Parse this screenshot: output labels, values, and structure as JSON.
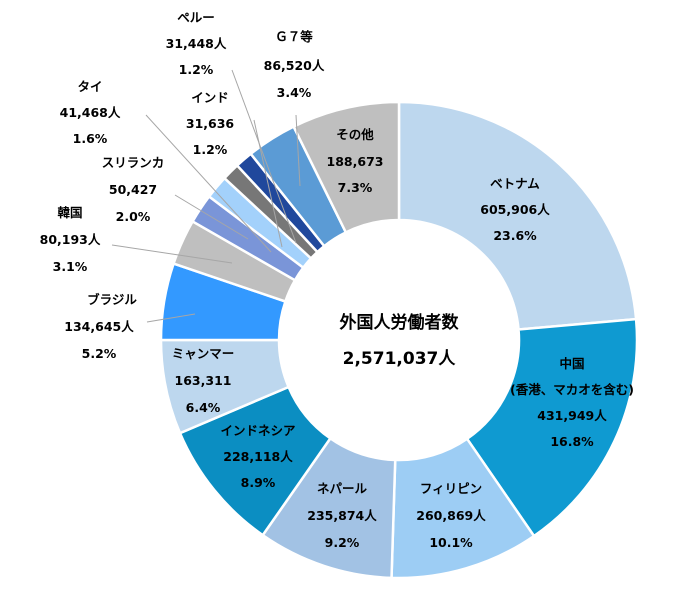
{
  "chart_data": {
    "type": "pie",
    "donut": true,
    "center_title": "外国人労働者数",
    "center_value": "2,571,037人",
    "slices": [
      {
        "name": "ベトナム",
        "count": "605,906人",
        "percent": "23.6%",
        "value": 23.6,
        "color": "#bdd7ee"
      },
      {
        "name": "中国",
        "note": "(香港、マカオを含む)",
        "count": "431,949人",
        "percent": "16.8%",
        "value": 16.8,
        "color": "#0f9ad1"
      },
      {
        "name": "フィリピン",
        "count": "260,869人",
        "percent": "10.1%",
        "value": 10.1,
        "color": "#9dcdf4"
      },
      {
        "name": "ネパール",
        "count": "235,874人",
        "percent": "9.2%",
        "value": 9.2,
        "color": "#a2c2e4"
      },
      {
        "name": "インドネシア",
        "count": "228,118人",
        "percent": "8.9%",
        "value": 8.9,
        "color": "#0b8ec2"
      },
      {
        "name": "ミャンマー",
        "count": "163,311",
        "percent": "6.4%",
        "value": 6.4,
        "color": "#bdd7ee"
      },
      {
        "name": "ブラジル",
        "count": "134,645人",
        "percent": "5.2%",
        "value": 5.2,
        "color": "#3399ff"
      },
      {
        "name": "韓国",
        "count": "80,193人",
        "percent": "3.1%",
        "value": 3.1,
        "color": "#bfbfbf"
      },
      {
        "name": "スリランカ",
        "count": "50,427",
        "percent": "2.0%",
        "value": 2.0,
        "color": "#7a95d8"
      },
      {
        "name": "タイ",
        "count": "41,468人",
        "percent": "1.6%",
        "value": 1.6,
        "color": "#a3d1fb"
      },
      {
        "name": "インド",
        "count": "31,636",
        "percent": "1.2%",
        "value": 1.2,
        "color": "#777777"
      },
      {
        "name": "ペルー",
        "count": "31,448人",
        "percent": "1.2%",
        "value": 1.2,
        "color": "#20489c"
      },
      {
        "name": "Ｇ７等",
        "count": "86,520人",
        "percent": "3.4%",
        "value": 3.4,
        "color": "#5b9bd5"
      },
      {
        "name": "その他",
        "count": "188,673",
        "percent": "7.3%",
        "value": 7.3,
        "color": "#bfbfbf"
      }
    ]
  }
}
